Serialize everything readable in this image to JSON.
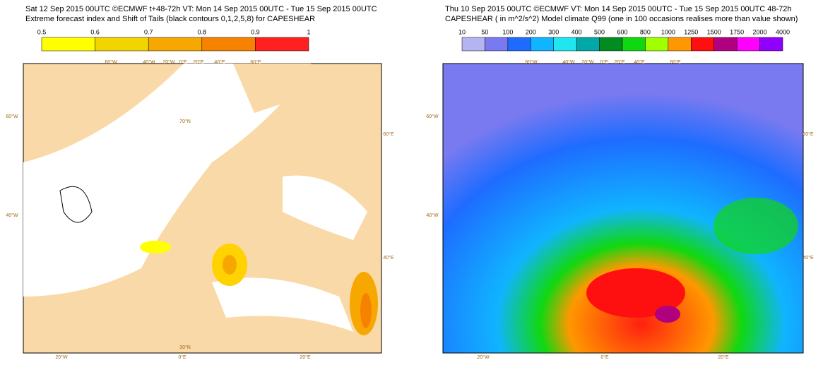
{
  "panels": [
    {
      "header": [
        "Sat 12 Sep 2015 00UTC ©ECMWF t+48-72h  VT: Mon 14 Sep 2015 00UTC - Tue 15 Sep 2015 00UTC",
        "Extreme forecast index and Shift of Tails (black contours 0,1,2,5,8) for CAPESHEAR"
      ],
      "colorbar": {
        "labels": [
          "0.5",
          "0.6",
          "0.7",
          "0.8",
          "0.9",
          "1"
        ],
        "colors": [
          "#ffff00",
          "#f2d400",
          "#f7a800",
          "#f78200",
          "#ff2020"
        ]
      },
      "map_labels": [
        "60°W",
        "40°W",
        "20°W",
        "0°E",
        "20°E",
        "40°E",
        "60°E",
        "60°W",
        "40°W",
        "70°N",
        "60°E",
        "40°E",
        "30°N",
        "20°W",
        "0°E",
        "20°E"
      ]
    },
    {
      "header": [
        "Thu 10 Sep 2015 00UTC ©ECMWF VT: Mon 14 Sep 2015 00UTC - Tue 15 Sep 2015 00UTC   48-72h",
        "CAPESHEAR  ( in m^2/s^2)   Model climate Q99 (one in 100 occasions realises more than value shown)"
      ],
      "colorbar": {
        "labels": [
          "10",
          "50",
          "100",
          "200",
          "300",
          "400",
          "500",
          "600",
          "800",
          "1000",
          "1250",
          "1500",
          "1750",
          "2000",
          "4000"
        ],
        "colors": [
          "#b4b4f0",
          "#7a7af0",
          "#1e6cff",
          "#10b4ff",
          "#20e6f0",
          "#00a8a8",
          "#008c20",
          "#10d810",
          "#a0ff00",
          "#ff9800",
          "#ff1010",
          "#b00080",
          "#ff00ff",
          "#9000ff"
        ]
      },
      "map_labels": [
        "60°W",
        "40°W",
        "20°W",
        "0°E",
        "20°E",
        "40°E",
        "60°E",
        "60°W",
        "40°W",
        "60°E",
        "40°E",
        "20°W",
        "0°E",
        "20°E"
      ]
    }
  ]
}
